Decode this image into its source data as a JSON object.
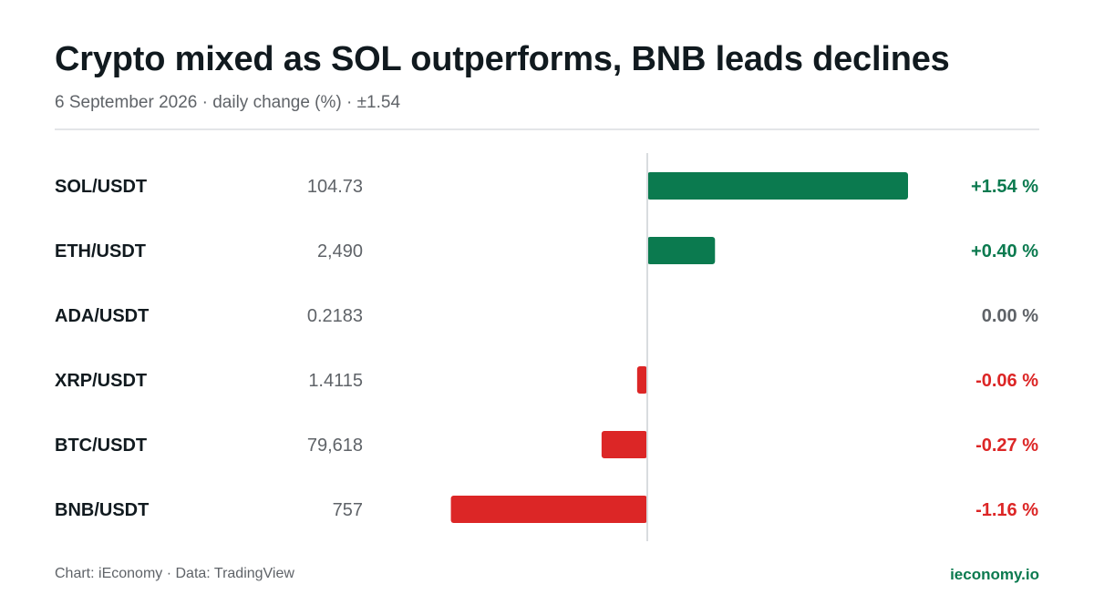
{
  "header": {
    "title": "Crypto mixed as SOL outperforms, BNB leads declines",
    "subtitle": "6 September 2026 · daily change (%) · ±1.54"
  },
  "footer": {
    "credit": "Chart: iEconomy · Data: TradingView",
    "brand": "ieconomy.io"
  },
  "colors": {
    "positive": "#0b7a4f",
    "negative": "#dc2626",
    "neutral": "#5f6368",
    "zero_line": "#d9dcdf"
  },
  "chart_data": {
    "type": "bar",
    "orientation": "horizontal",
    "categories": [
      "SOL/USDT",
      "ETH/USDT",
      "ADA/USDT",
      "XRP/USDT",
      "BTC/USDT",
      "BNB/USDT"
    ],
    "prices": [
      "104.73",
      "2,490",
      "0.2183",
      "1.4115",
      "79,618",
      "757"
    ],
    "values": [
      1.54,
      0.4,
      0.0,
      -0.06,
      -0.27,
      -1.16
    ],
    "value_labels": [
      "+1.54 %",
      "+0.40 %",
      "0.00 %",
      "-0.06 %",
      "-0.27 %",
      "-1.16 %"
    ],
    "xlim": [
      -1.54,
      1.54
    ],
    "grid": false
  }
}
